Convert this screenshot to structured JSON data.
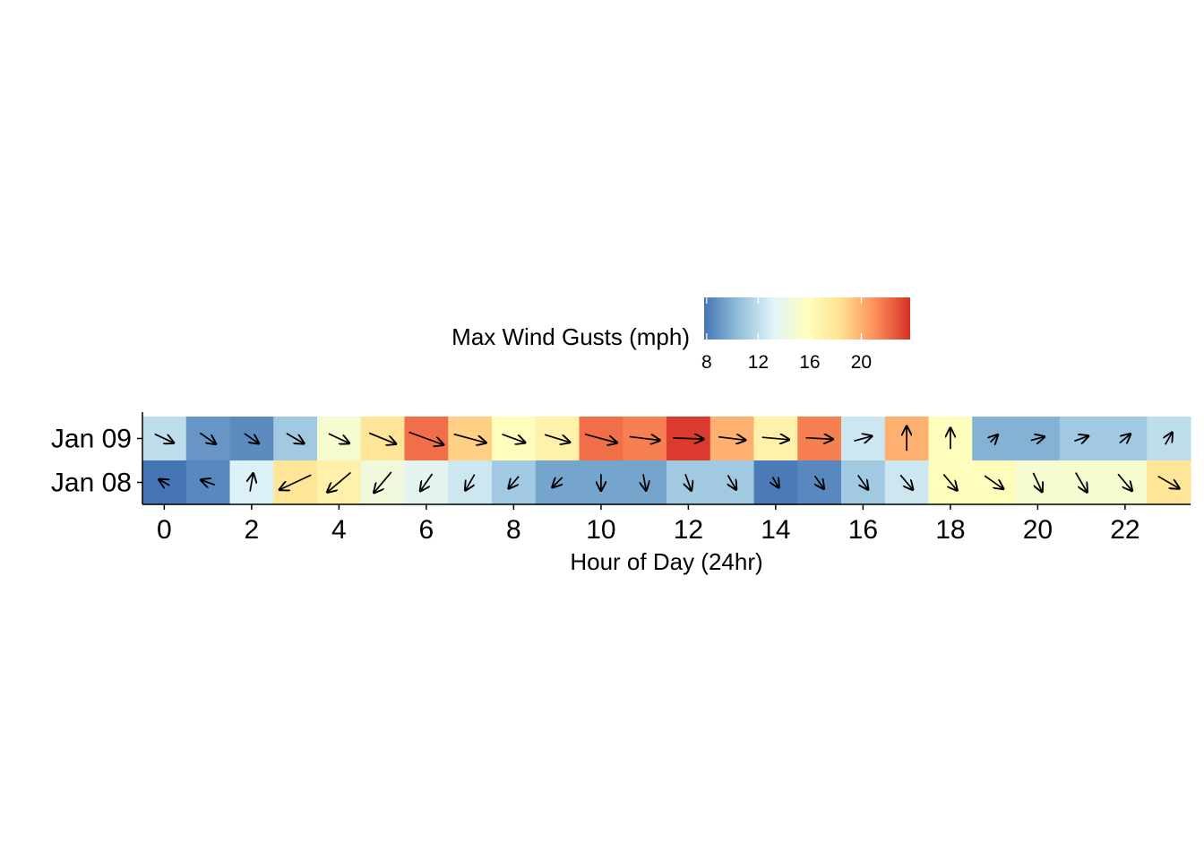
{
  "chart_data": {
    "type": "heatmap",
    "title": "",
    "xlabel": "Hour of Day (24hr)",
    "ylabel": "",
    "x_ticks": [
      0,
      2,
      4,
      6,
      8,
      10,
      12,
      14,
      16,
      18,
      20,
      22
    ],
    "xlim": [
      -0.5,
      23.5
    ],
    "rows": [
      "Jan 09",
      "Jan 08"
    ],
    "legend": {
      "title": "Max Wind Gusts (mph)",
      "ticks": [
        8,
        12,
        16,
        20
      ],
      "range": [
        7.8,
        23.8
      ],
      "placement": "top",
      "palette": [
        "#4575b4",
        "#91bfdb",
        "#e0f3f8",
        "#ffffbf",
        "#fee090",
        "#fc8d59",
        "#d73027"
      ]
    },
    "arrows_note": "",
    "series": [
      {
        "name": "Jan 09",
        "hours": [
          0,
          1,
          2,
          3,
          4,
          5,
          6,
          7,
          8,
          9,
          10,
          11,
          12,
          13,
          14,
          15,
          16,
          17,
          18,
          19,
          20,
          21,
          22,
          23
        ],
        "gust_mph": [
          12,
          9,
          8.6,
          11,
          15,
          18,
          22,
          19,
          16,
          17,
          22,
          21.5,
          23.5,
          20,
          17,
          21.5,
          12.5,
          20,
          16,
          10,
          10,
          11,
          11,
          12
        ],
        "wind_dir_to_deg": [
          115,
          125,
          125,
          120,
          115,
          112,
          110,
          105,
          110,
          107,
          105,
          97,
          92,
          97,
          95,
          93,
          75,
          0,
          0,
          45,
          75,
          70,
          50,
          30
        ],
        "arrow_len": [
          0.48,
          0.44,
          0.4,
          0.46,
          0.52,
          0.66,
          0.84,
          0.76,
          0.56,
          0.6,
          0.76,
          0.7,
          0.7,
          0.62,
          0.62,
          0.62,
          0.42,
          0.56,
          0.48,
          0.24,
          0.32,
          0.34,
          0.32,
          0.32
        ]
      },
      {
        "name": "Jan 08",
        "hours": [
          0,
          1,
          2,
          3,
          4,
          5,
          6,
          7,
          8,
          9,
          10,
          11,
          12,
          13,
          14,
          15,
          16,
          17,
          18,
          19,
          20,
          21,
          22,
          23
        ],
        "gust_mph": [
          7.8,
          8.5,
          13,
          18,
          17,
          14.5,
          13.5,
          12.5,
          11,
          9.5,
          9.5,
          9.5,
          11,
          11,
          8,
          8.5,
          11,
          12.5,
          16,
          16,
          15,
          15,
          15,
          18
        ],
        "wind_dir_to_deg": [
          300,
          290,
          10,
          245,
          230,
          220,
          215,
          210,
          220,
          225,
          180,
          170,
          160,
          150,
          150,
          145,
          145,
          140,
          140,
          125,
          155,
          150,
          140,
          120
        ],
        "arrow_len": [
          0.28,
          0.34,
          0.42,
          0.8,
          0.7,
          0.62,
          0.48,
          0.42,
          0.36,
          0.32,
          0.38,
          0.38,
          0.4,
          0.38,
          0.28,
          0.36,
          0.4,
          0.44,
          0.48,
          0.52,
          0.48,
          0.52,
          0.5,
          0.56
        ]
      }
    ]
  }
}
